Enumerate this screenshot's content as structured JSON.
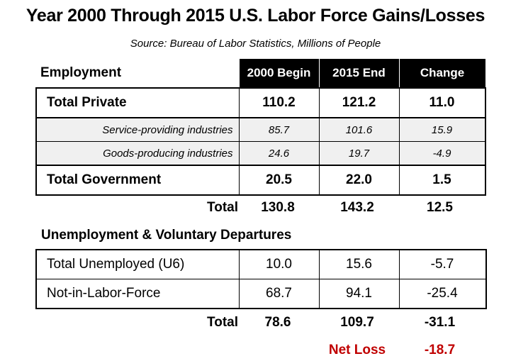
{
  "chart_data": {
    "type": "table",
    "title": "Year 2000 Through 2015 U.S. Labor Force Gains/Losses",
    "subtitle": "Source: Bureau of Labor Statistics, Millions of People",
    "columns": [
      "2000 Begin",
      "2015 End",
      "Change"
    ],
    "employment": {
      "heading": "Employment",
      "rows": [
        {
          "label": "Total Private",
          "values": [
            "110.2",
            "121.2",
            "11.0"
          ]
        },
        {
          "label": "Service-providing industries",
          "values": [
            "85.7",
            "101.6",
            "15.9"
          ]
        },
        {
          "label": "Goods-producing industries",
          "values": [
            "24.6",
            "19.7",
            "-4.9"
          ]
        },
        {
          "label": "Total Government",
          "values": [
            "20.5",
            "22.0",
            "1.5"
          ]
        }
      ],
      "total": {
        "label": "Total",
        "values": [
          "130.8",
          "143.2",
          "12.5"
        ]
      }
    },
    "unemployment": {
      "heading": "Unemployment & Voluntary Departures",
      "rows": [
        {
          "label": "Total Unemployed (U6)",
          "values": [
            "10.0",
            "15.6",
            "-5.7"
          ]
        },
        {
          "label": "Not-in-Labor-Force",
          "values": [
            "68.7",
            "94.1",
            "-25.4"
          ]
        }
      ],
      "total": {
        "label": "Total",
        "values": [
          "78.6",
          "109.7",
          "-31.1"
        ]
      }
    },
    "net": {
      "label": "Net Loss",
      "value": "-18.7",
      "color": "#c00000"
    }
  }
}
